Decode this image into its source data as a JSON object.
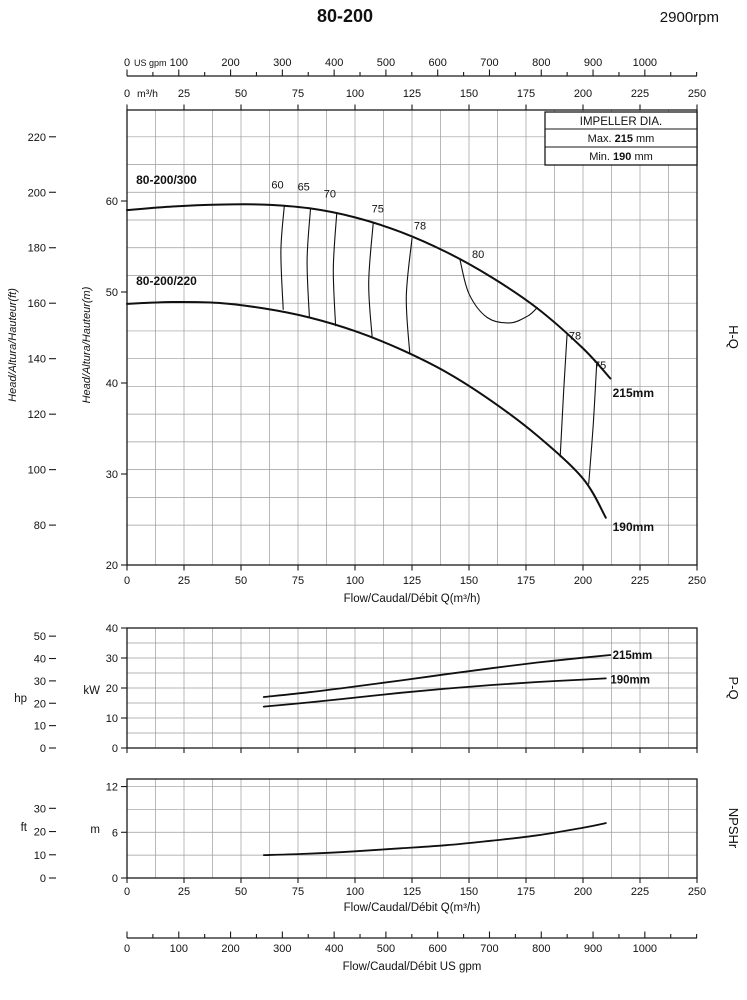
{
  "page": {
    "title": "80-200",
    "rpm": "2900rpm"
  },
  "impeller_box": {
    "title": "IMPELLER DIA.",
    "rows": [
      {
        "label": "Max.",
        "value": "215",
        "unit": "mm"
      },
      {
        "label": "Min.",
        "value": "190",
        "unit": "mm"
      }
    ]
  },
  "chart_data": [
    {
      "id": "hq",
      "type": "line",
      "right_label": "H-Q",
      "x_top_axis_gpm": {
        "unit_label": "US gpm",
        "min": 0,
        "max": 1100,
        "tick_step": 100,
        "labeled_max": 1000
      },
      "x_axis": {
        "title": "Flow/Caudal/Débit Q(m³/h)",
        "unit_label": "m³/h",
        "min": 0,
        "max": 250,
        "tick_step": 25
      },
      "y_axis_m": {
        "label": "Head/Altura/Hauteur(m)",
        "ticks": [
          20,
          30,
          40,
          50,
          60
        ],
        "min": 20,
        "max": 70
      },
      "y_axis_ft": {
        "label": "Head/Altura/Hauteur(ft)",
        "ticks": [
          80,
          100,
          120,
          140,
          160,
          180,
          200,
          220
        ]
      },
      "series": [
        {
          "name": "80-200/300",
          "name_at": [
            4,
            62.3
          ],
          "impeller_label": "215mm",
          "impeller_label_at": [
            213,
            38.9
          ],
          "points": [
            [
              0,
              59
            ],
            [
              20,
              59.4
            ],
            [
              40,
              59.6
            ],
            [
              60,
              59.6
            ],
            [
              80,
              59.2
            ],
            [
              100,
              58.2
            ],
            [
              120,
              56.6
            ],
            [
              140,
              54.4
            ],
            [
              160,
              51.6
            ],
            [
              180,
              48.2
            ],
            [
              200,
              43.8
            ],
            [
              212,
              40.5
            ]
          ]
        },
        {
          "name": "80-200/220",
          "name_at": [
            4,
            51.2
          ],
          "impeller_label": "190mm",
          "impeller_label_at": [
            213,
            24.2
          ],
          "points": [
            [
              0,
              48.7
            ],
            [
              20,
              48.9
            ],
            [
              40,
              48.8
            ],
            [
              60,
              48.2
            ],
            [
              80,
              47.2
            ],
            [
              100,
              45.7
            ],
            [
              120,
              43.7
            ],
            [
              140,
              41.2
            ],
            [
              160,
              38
            ],
            [
              180,
              34.2
            ],
            [
              200,
              29.5
            ],
            [
              210,
              25.2
            ]
          ]
        }
      ],
      "efficiency_lines": [
        {
          "label": "60",
          "label_at": [
            66,
            61.8
          ],
          "points": [
            [
              69,
              59.5
            ],
            [
              67.5,
              54.5
            ],
            [
              68.5,
              48.1
            ]
          ]
        },
        {
          "label": "65",
          "label_at": [
            77.5,
            61.6
          ],
          "points": [
            [
              80.5,
              59.2
            ],
            [
              79,
              53.5
            ],
            [
              80,
              47.2
            ]
          ]
        },
        {
          "label": "70",
          "label_at": [
            89,
            60.8
          ],
          "points": [
            [
              92,
              58.7
            ],
            [
              90.5,
              52.5
            ],
            [
              91.5,
              46.3
            ]
          ]
        },
        {
          "label": "75",
          "label_at": [
            110,
            59.2
          ],
          "points": [
            [
              108,
              57.6
            ],
            [
              106,
              51
            ],
            [
              107.5,
              45.1
            ]
          ]
        },
        {
          "label": "78",
          "label_at": [
            128.5,
            57.3
          ],
          "points": [
            [
              125,
              55.9
            ],
            [
              122.5,
              49.5
            ],
            [
              124,
              43.3
            ]
          ]
        },
        {
          "label": "80",
          "label_at": [
            154,
            54.2
          ],
          "points": [
            [
              146,
              53.6
            ],
            [
              150,
              49.8
            ],
            [
              158,
              47.2
            ],
            [
              168,
              46.6
            ],
            [
              176,
              47.4
            ],
            [
              180,
              48.3
            ]
          ]
        },
        {
          "label": "78",
          "label_at": [
            196.5,
            45.2
          ],
          "points": [
            [
              193,
              45.3
            ],
            [
              191.5,
              39
            ],
            [
              190,
              31.9
            ]
          ]
        },
        {
          "label": "75",
          "label_at": [
            207.5,
            42.0
          ],
          "points": [
            [
              206,
              42.1
            ],
            [
              204.5,
              35.5
            ],
            [
              202.5,
              28.9
            ]
          ]
        }
      ]
    },
    {
      "id": "pq",
      "type": "line",
      "right_label": "P-Q",
      "y_axis_kw": {
        "label": "kW",
        "ticks": [
          0,
          10,
          20,
          30,
          40
        ],
        "min": 0,
        "max": 40
      },
      "y_axis_hp": {
        "label": "hp",
        "ticks": [
          0,
          10,
          20,
          30,
          40,
          50
        ]
      },
      "series": [
        {
          "name": "215mm",
          "label_at": [
            213,
            31
          ],
          "points": [
            [
              60,
              17
            ],
            [
              80,
              18.6
            ],
            [
              100,
              20.5
            ],
            [
              120,
              22.5
            ],
            [
              140,
              24.6
            ],
            [
              160,
              26.6
            ],
            [
              180,
              28.5
            ],
            [
              200,
              30.1
            ],
            [
              212,
              31
            ]
          ]
        },
        {
          "name": "190mm",
          "label_at": [
            212,
            22.8
          ],
          "points": [
            [
              60,
              13.8
            ],
            [
              80,
              15.2
            ],
            [
              100,
              16.8
            ],
            [
              120,
              18.4
            ],
            [
              140,
              19.8
            ],
            [
              160,
              21
            ],
            [
              180,
              22
            ],
            [
              200,
              22.8
            ],
            [
              210,
              23.2
            ]
          ]
        }
      ]
    },
    {
      "id": "npshr",
      "type": "line",
      "right_label": "NPSHr",
      "x_axis": {
        "title": "Flow/Caudal/Débit Q(m³/h)",
        "min": 0,
        "max": 250,
        "tick_step": 25
      },
      "y_axis_m": {
        "label": "m",
        "ticks": [
          0,
          6,
          12
        ],
        "min": 0,
        "max": 13
      },
      "y_axis_ft": {
        "label": "ft",
        "ticks": [
          0,
          10,
          20,
          30
        ]
      },
      "series": [
        {
          "name": "NPSHr",
          "points": [
            [
              60,
              3
            ],
            [
              80,
              3.2
            ],
            [
              100,
              3.5
            ],
            [
              120,
              3.9
            ],
            [
              140,
              4.3
            ],
            [
              160,
              4.9
            ],
            [
              180,
              5.6
            ],
            [
              200,
              6.6
            ],
            [
              210,
              7.2
            ]
          ]
        }
      ]
    },
    {
      "id": "gpm-axis",
      "type": "axis",
      "x_axis": {
        "title": "Flow/Caudal/Débit  US gpm",
        "min": 0,
        "max": 1100,
        "tick_step": 100,
        "labeled_max": 1000
      }
    }
  ]
}
